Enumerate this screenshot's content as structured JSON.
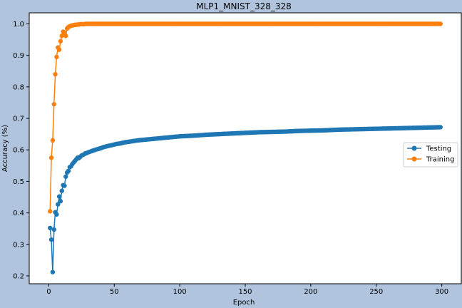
{
  "chart_data": {
    "type": "line",
    "title": "MLP1_MNIST_328_328",
    "xlabel": "Epoch",
    "ylabel": "Accuracy (%)",
    "xlim": [
      -14.9,
      314.9
    ],
    "ylim": [
      0.175,
      1.035
    ],
    "xticks": [
      0,
      50,
      100,
      150,
      200,
      250,
      300
    ],
    "yticks": [
      0.2,
      0.3,
      0.4,
      0.5,
      0.6,
      0.7,
      0.8,
      0.9,
      1.0
    ],
    "grid": false,
    "legend_position": "center-right",
    "background": "#b0c4de",
    "plot_background": "#ffffff",
    "series": [
      {
        "name": "Testing",
        "color": "#1f77b4",
        "x": [
          1,
          2,
          3,
          4,
          5,
          6,
          7,
          8,
          9,
          10,
          11,
          12,
          13,
          14,
          15,
          16,
          17,
          18,
          19,
          20,
          21,
          22,
          23,
          24,
          25,
          26,
          27,
          28,
          29,
          30,
          32,
          34,
          36,
          38,
          40,
          42,
          44,
          46,
          48,
          50,
          52,
          54,
          56,
          58,
          60,
          63,
          66,
          70,
          75,
          80,
          85,
          90,
          95,
          100,
          110,
          120,
          130,
          140,
          150,
          160,
          170,
          180,
          190,
          200,
          210,
          220,
          230,
          240,
          250,
          260,
          270,
          280,
          290,
          299
        ],
        "y": [
          0.352,
          0.315,
          0.212,
          0.347,
          0.402,
          0.395,
          0.427,
          0.452,
          0.437,
          0.47,
          0.488,
          0.486,
          0.515,
          0.528,
          0.533,
          0.545,
          0.548,
          0.555,
          0.56,
          0.565,
          0.57,
          0.575,
          0.574,
          0.578,
          0.582,
          0.584,
          0.586,
          0.589,
          0.59,
          0.592,
          0.595,
          0.598,
          0.601,
          0.603,
          0.606,
          0.609,
          0.611,
          0.613,
          0.615,
          0.617,
          0.619,
          0.62,
          0.622,
          0.624,
          0.625,
          0.627,
          0.629,
          0.631,
          0.633,
          0.635,
          0.637,
          0.639,
          0.641,
          0.643,
          0.645,
          0.648,
          0.65,
          0.652,
          0.654,
          0.656,
          0.657,
          0.658,
          0.66,
          0.661,
          0.662,
          0.664,
          0.665,
          0.666,
          0.667,
          0.668,
          0.669,
          0.67,
          0.671,
          0.672
        ]
      },
      {
        "name": "Training",
        "color": "#ff7f0e",
        "x": [
          1,
          2,
          3,
          4,
          5,
          6,
          7,
          8,
          9,
          10,
          11,
          12,
          13,
          14,
          15,
          16,
          17,
          18,
          19,
          20,
          21,
          22,
          23,
          24,
          25,
          26,
          27,
          28,
          29,
          30,
          32,
          34,
          36,
          38,
          40,
          45,
          50,
          60,
          70,
          80,
          90,
          100,
          120,
          140,
          160,
          180,
          200,
          220,
          240,
          260,
          280,
          299
        ],
        "y": [
          0.405,
          0.575,
          0.63,
          0.745,
          0.84,
          0.895,
          0.925,
          0.918,
          0.945,
          0.962,
          0.975,
          0.97,
          0.962,
          0.985,
          0.99,
          0.992,
          0.994,
          0.995,
          0.996,
          0.997,
          0.997,
          0.998,
          0.998,
          0.999,
          0.999,
          0.999,
          0.999,
          1.0,
          1.0,
          1.0,
          1.0,
          1.0,
          1.0,
          1.0,
          1.0,
          1.0,
          1.0,
          1.0,
          1.0,
          1.0,
          1.0,
          1.0,
          1.0,
          1.0,
          1.0,
          1.0,
          1.0,
          1.0,
          1.0,
          1.0,
          1.0,
          1.0
        ]
      }
    ]
  }
}
